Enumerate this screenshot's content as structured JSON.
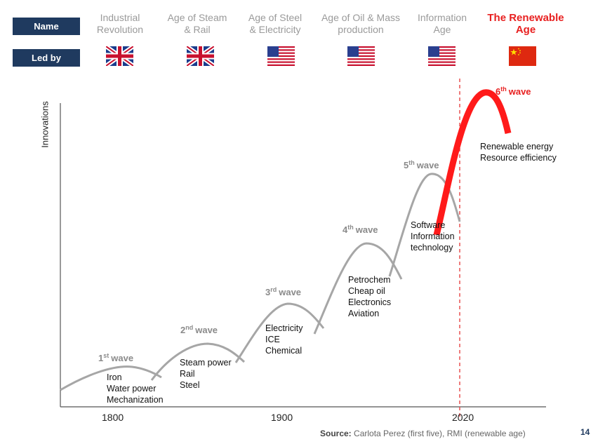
{
  "header": {
    "name_label": "Name",
    "led_by_label": "Led by"
  },
  "eras": [
    {
      "name_line1": "Industrial",
      "name_line2": "Revolution",
      "flag": "uk-flag-icon"
    },
    {
      "name_line1": "Age of Steam",
      "name_line2": "& Rail",
      "flag": "uk-flag-icon"
    },
    {
      "name_line1": "Age of Steel",
      "name_line2": "& Electricity",
      "flag": "us-flag-icon"
    },
    {
      "name_line1": "Age of Oil & Mass",
      "name_line2": "production",
      "flag": "us-flag-icon"
    },
    {
      "name_line1": "Information",
      "name_line2": "Age",
      "flag": "us-flag-icon"
    },
    {
      "name_line1": "The Renewable",
      "name_line2": "Age",
      "flag": "china-flag-icon",
      "highlight_color": "#e82020"
    }
  ],
  "chart": {
    "ylabel": "Innovations",
    "x_ticks": [
      "1800",
      "1900",
      "2020"
    ],
    "waves": [
      {
        "num": "1",
        "sup": "st",
        "word": "wave",
        "items": [
          "Iron",
          "Water power",
          "Mechanization"
        ]
      },
      {
        "num": "2",
        "sup": "nd",
        "word": "wave",
        "items": [
          "Steam power",
          "Rail",
          "Steel"
        ]
      },
      {
        "num": "3",
        "sup": "rd",
        "word": "wave",
        "items": [
          "Electricity",
          "ICE",
          "Chemical"
        ]
      },
      {
        "num": "4",
        "sup": "th",
        "word": "wave",
        "items": [
          "Petrochem",
          "Cheap oil",
          "Electronics",
          "Aviation"
        ]
      },
      {
        "num": "5",
        "sup": "th",
        "word": "wave",
        "items": [
          "Software",
          "Information",
          "technology"
        ]
      },
      {
        "num": "6",
        "sup": "th",
        "word": "wave",
        "items": [
          "Renewable energy",
          "Resource efficiency"
        ]
      }
    ],
    "colors": {
      "wave": "#a6a6a6",
      "renewable": "#ff1a1a",
      "divider": "#e85050",
      "axis": "#555555"
    }
  },
  "footer": {
    "source_label": "Source:",
    "source_text": " Carlota  Perez (first five), RMI (renewable age)",
    "page_number": "14"
  }
}
